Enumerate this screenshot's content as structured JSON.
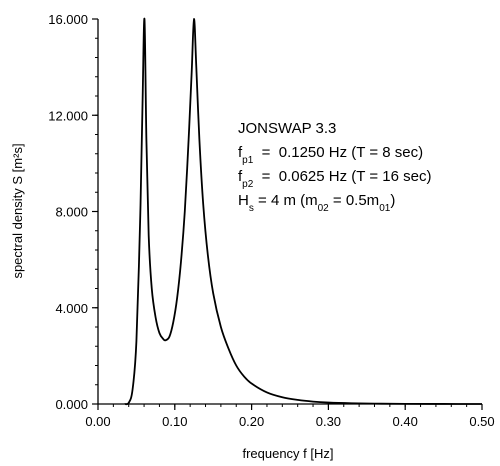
{
  "chart_data": {
    "type": "line",
    "xlabel": "frequency f [Hz]",
    "ylabel": "spectral density S [m²s]",
    "xlim": [
      0,
      0.5
    ],
    "ylim": [
      0,
      16
    ],
    "x_ticks": [
      "0.00",
      "0.10",
      "0.20",
      "0.30",
      "0.40",
      "0.50"
    ],
    "y_ticks": [
      "0.000",
      "4.000",
      "8.000",
      "12.000",
      "16.000"
    ],
    "x_minor_step": 0.02,
    "y_minor_step": 0.8,
    "grid": false,
    "series": [
      {
        "points": [
          [
            0.035,
            0.0
          ],
          [
            0.04,
            0.05
          ],
          [
            0.045,
            0.6
          ],
          [
            0.05,
            2.6
          ],
          [
            0.055,
            7.8
          ],
          [
            0.058,
            12.5
          ],
          [
            0.0605,
            16.0
          ],
          [
            0.063,
            11.0
          ],
          [
            0.066,
            7.0
          ],
          [
            0.07,
            4.8
          ],
          [
            0.075,
            3.6
          ],
          [
            0.08,
            2.95
          ],
          [
            0.085,
            2.7
          ],
          [
            0.088,
            2.65
          ],
          [
            0.093,
            2.8
          ],
          [
            0.098,
            3.4
          ],
          [
            0.103,
            4.4
          ],
          [
            0.108,
            5.9
          ],
          [
            0.113,
            8.0
          ],
          [
            0.118,
            11.0
          ],
          [
            0.122,
            13.8
          ],
          [
            0.125,
            16.0
          ],
          [
            0.128,
            14.0
          ],
          [
            0.132,
            11.0
          ],
          [
            0.137,
            8.3
          ],
          [
            0.143,
            6.2
          ],
          [
            0.15,
            4.6
          ],
          [
            0.16,
            3.2
          ],
          [
            0.17,
            2.3
          ],
          [
            0.18,
            1.6
          ],
          [
            0.19,
            1.15
          ],
          [
            0.2,
            0.85
          ],
          [
            0.22,
            0.48
          ],
          [
            0.24,
            0.28
          ],
          [
            0.26,
            0.17
          ],
          [
            0.28,
            0.1
          ],
          [
            0.3,
            0.06
          ],
          [
            0.33,
            0.03
          ],
          [
            0.36,
            0.015
          ],
          [
            0.4,
            0.006
          ],
          [
            0.45,
            0.002
          ],
          [
            0.5,
            0.0
          ]
        ]
      }
    ],
    "annotations": [
      {
        "parts": [
          {
            "t": "JONSWAP 3.3"
          }
        ]
      },
      {
        "parts": [
          {
            "t": "f"
          },
          {
            "t": "p1",
            "sub": true
          },
          {
            "t": "  =  0.1250 Hz (T = 8 sec)"
          }
        ]
      },
      {
        "parts": [
          {
            "t": "f"
          },
          {
            "t": "p2",
            "sub": true
          },
          {
            "t": "  =  0.0625 Hz (T = 16 sec)"
          }
        ]
      },
      {
        "parts": [
          {
            "t": "H"
          },
          {
            "t": "s",
            "sub": true
          },
          {
            "t": " = 4 m (m"
          },
          {
            "t": "02",
            "sub": true
          },
          {
            "t": " = 0.5m"
          },
          {
            "t": "01",
            "sub": true
          },
          {
            "t": ")"
          }
        ]
      }
    ]
  }
}
